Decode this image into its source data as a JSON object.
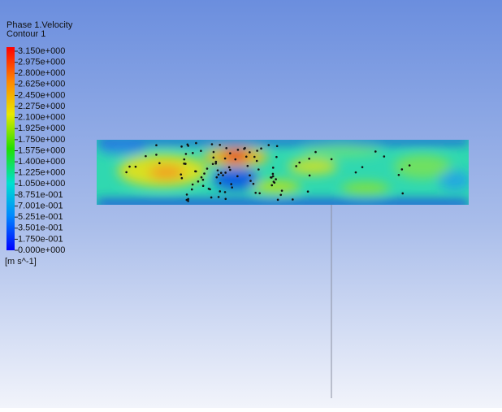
{
  "legend": {
    "title": "Phase 1.Velocity",
    "subtitle": "Contour 1",
    "labels": [
      "3.150e+000",
      "2.975e+000",
      "2.800e+000",
      "2.625e+000",
      "2.450e+000",
      "2.275e+000",
      "2.100e+000",
      "1.925e+000",
      "1.750e+000",
      "1.575e+000",
      "1.400e+000",
      "1.225e+000",
      "1.050e+000",
      "8.751e-001",
      "7.001e-001",
      "5.251e-001",
      "3.501e-001",
      "1.750e-001",
      "0.000e+000"
    ],
    "unit": "[m s^-1]"
  }
}
